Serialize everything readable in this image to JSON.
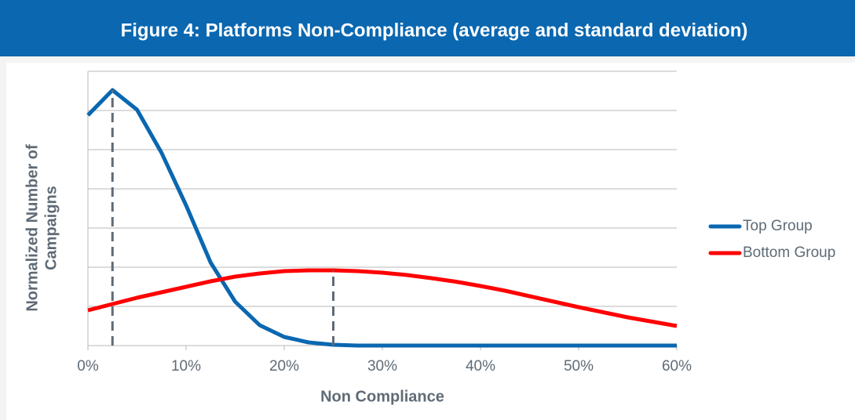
{
  "chart_data": {
    "type": "line",
    "title": "Figure 4: Platforms Non-Compliance (average and standard deviation)",
    "xlabel": "Non Compliance",
    "ylabel": [
      "Normalized Number of",
      "Campaigns"
    ],
    "x": [
      0,
      2.5,
      5,
      7.5,
      10,
      12.5,
      15,
      17.5,
      20,
      22.5,
      25,
      27.5,
      30,
      32.5,
      35,
      37.5,
      40,
      42.5,
      45,
      47.5,
      50,
      52.5,
      55,
      57.5,
      60
    ],
    "series": [
      {
        "name": "Top Group",
        "color": "#0a67b0",
        "values": [
          5.88,
          6.52,
          6.02,
          4.92,
          3.58,
          2.12,
          1.12,
          0.52,
          0.22,
          0.08,
          0.02,
          0,
          0,
          0,
          0,
          0,
          0,
          0,
          0,
          0,
          0,
          0,
          0,
          0,
          0
        ]
      },
      {
        "name": "Bottom Group",
        "color": "#ff0000",
        "values": [
          0.9,
          1.06,
          1.22,
          1.36,
          1.5,
          1.64,
          1.76,
          1.84,
          1.9,
          1.92,
          1.92,
          1.9,
          1.86,
          1.8,
          1.72,
          1.63,
          1.52,
          1.4,
          1.26,
          1.12,
          0.98,
          0.85,
          0.72,
          0.61,
          0.5
        ]
      }
    ],
    "mean_lines": [
      {
        "series": 0,
        "index": 1
      },
      {
        "series": 1,
        "index": 10
      }
    ],
    "xlim": [
      0,
      60
    ],
    "xticks": [
      {
        "value": 0,
        "label": "0%"
      },
      {
        "value": 10,
        "label": "10%"
      },
      {
        "value": 20,
        "label": "20%"
      },
      {
        "value": 30,
        "label": "30%"
      },
      {
        "value": 40,
        "label": "40%"
      },
      {
        "value": 50,
        "label": "50%"
      },
      {
        "value": 60,
        "label": "60%"
      }
    ],
    "ylim": [
      0,
      7
    ],
    "yticks": [
      0,
      1,
      2,
      3,
      4,
      5,
      6,
      7
    ],
    "ytick_labels": false,
    "grid": true,
    "legend": "right"
  }
}
